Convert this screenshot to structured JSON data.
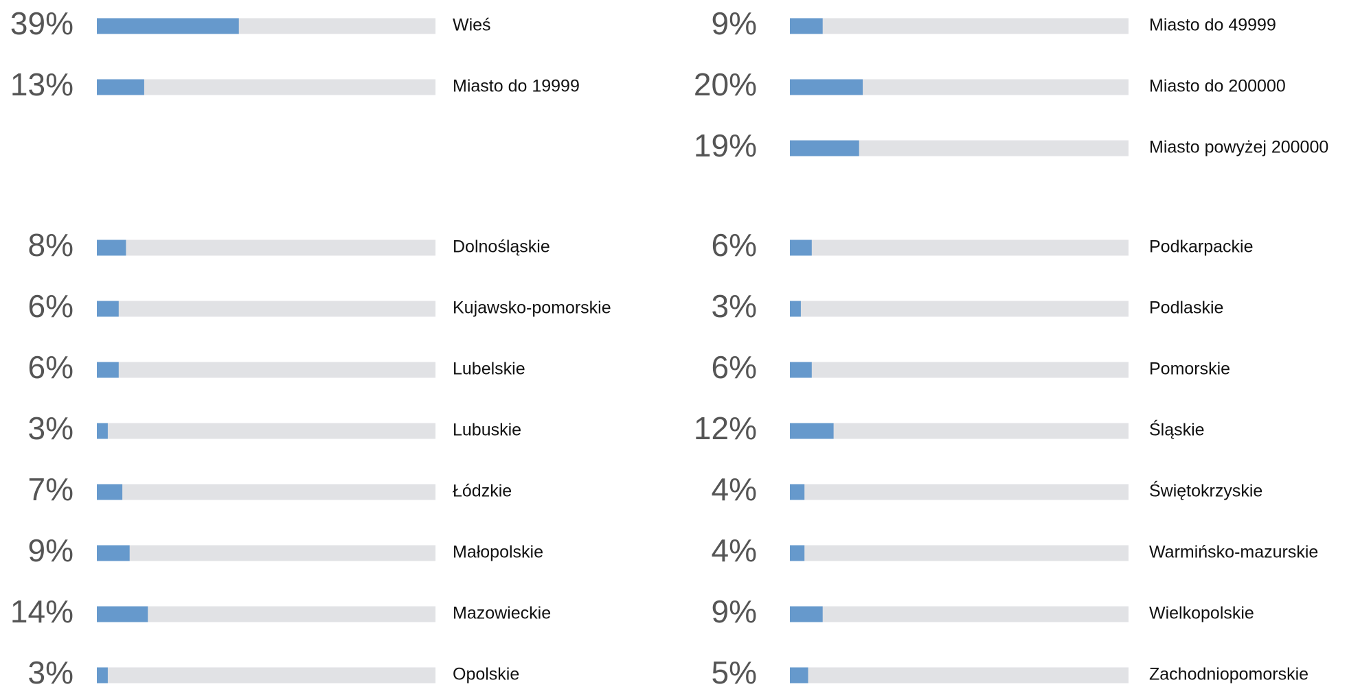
{
  "chart_data": [
    {
      "type": "bar",
      "categories": [
        "Wieś",
        "Miasto do 19999"
      ],
      "values": [
        39,
        13
      ],
      "value_labels": [
        "39%",
        "13%"
      ],
      "xlim": [
        0,
        93
      ],
      "color": "#6699cc",
      "track_color": "#e1e2e5"
    },
    {
      "type": "bar",
      "categories": [
        "Miasto do 49999",
        "Miasto do 200000",
        "Miasto powyżej 200000"
      ],
      "values": [
        9,
        20,
        19
      ],
      "value_labels": [
        "9%",
        "20%",
        "19%"
      ],
      "xlim": [
        0,
        93
      ],
      "color": "#6699cc",
      "track_color": "#e1e2e5"
    },
    {
      "type": "bar",
      "categories": [
        "Dolnośląskie",
        "Kujawsko-pomorskie",
        "Lubelskie",
        "Lubuskie",
        "Łódzkie",
        "Małopolskie",
        "Mazowieckie",
        "Opolskie"
      ],
      "values": [
        8,
        6,
        6,
        3,
        7,
        9,
        14,
        3
      ],
      "value_labels": [
        "8%",
        "6%",
        "6%",
        "3%",
        "7%",
        "9%",
        "14%",
        "3%"
      ],
      "xlim": [
        0,
        93
      ],
      "color": "#6699cc",
      "track_color": "#e1e2e5"
    },
    {
      "type": "bar",
      "categories": [
        "Podkarpackie",
        "Podlaskie",
        "Pomorskie",
        "Śląskie",
        "Świętokrzyskie",
        "Warmińsko-mazurskie",
        "Wielkopolskie",
        "Zachodniopomorskie"
      ],
      "values": [
        6,
        3,
        6,
        12,
        4,
        4,
        9,
        5
      ],
      "value_labels": [
        "6%",
        "3%",
        "6%",
        "12%",
        "4%",
        "4%",
        "9%",
        "5%"
      ],
      "xlim": [
        0,
        93
      ],
      "color": "#6699cc",
      "track_color": "#e1e2e5"
    }
  ]
}
